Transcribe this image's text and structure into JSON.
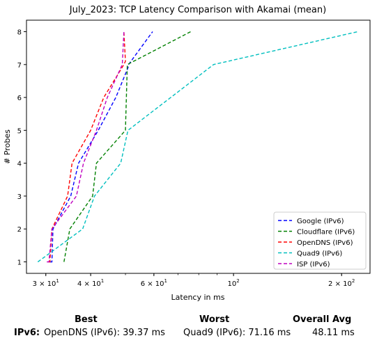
{
  "chart_data": {
    "type": "line",
    "title": "July_2023: TCP Latency Comparison with Akamai (mean)",
    "xlabel": "Latency in ms",
    "ylabel": "# Probes",
    "x_scale": "log",
    "xlim": [
      26.5,
      240
    ],
    "ylim": [
      0.65,
      8.35
    ],
    "x_ticks": [
      {
        "value": 30,
        "base": "3",
        "exp": "1",
        "prefix": "3 × 10"
      },
      {
        "value": 40,
        "base": "4",
        "exp": "1",
        "prefix": "4 × 10"
      },
      {
        "value": 60,
        "base": "6",
        "exp": "1",
        "prefix": "6 × 10"
      },
      {
        "value": 100,
        "base": "",
        "exp": "2",
        "prefix": "10"
      },
      {
        "value": 200,
        "base": "2",
        "exp": "2",
        "prefix": "2 × 10"
      }
    ],
    "y_ticks": [
      1,
      2,
      3,
      4,
      5,
      6,
      7,
      8
    ],
    "legend_position": "bottom-right",
    "series": [
      {
        "name": "Google (IPv6)",
        "color": "#0000ff",
        "x": [
          30.8,
          31.2,
          31.4,
          35.2,
          37.0,
          42.0,
          47.0,
          50.8,
          51.0,
          59.5
        ],
        "y": [
          1,
          1,
          2,
          3,
          4,
          5,
          6,
          6.9,
          7,
          8
        ]
      },
      {
        "name": "Cloudflare (IPv6)",
        "color": "#008000",
        "x": [
          33.7,
          35.0,
          40.5,
          41.5,
          50.0,
          50.6,
          76.0
        ],
        "y": [
          1,
          2,
          3,
          4,
          5,
          7,
          8
        ]
      },
      {
        "name": "OpenDNS (IPv6)",
        "color": "#ff0000",
        "x": [
          30.5,
          30.8,
          31.2,
          34.5,
          35.5,
          40.0,
          43.5,
          49.5,
          50.0,
          49.5
        ],
        "y": [
          1,
          1,
          2,
          3,
          4,
          5,
          6,
          7,
          7.1,
          8
        ]
      },
      {
        "name": "Quad9 (IPv6)",
        "color": "#00bfbf",
        "x": [
          28.5,
          38.0,
          41.0,
          48.5,
          50.8,
          88.0,
          222.0
        ],
        "y": [
          1,
          2,
          3,
          4,
          5,
          7,
          8
        ]
      },
      {
        "name": "ISP (IPv6)",
        "color": "#bf00bf",
        "x": [
          30.2,
          30.6,
          31.2,
          36.5,
          38.2,
          41.5,
          44.5,
          49.0,
          49.5
        ],
        "y": [
          1,
          1,
          2,
          3,
          4,
          5,
          6,
          7,
          8
        ]
      }
    ]
  },
  "summary": {
    "best_header": "Best",
    "worst_header": "Worst",
    "avg_header": "Overall Avg",
    "row_label": "IPv6:",
    "best_value": "OpenDNS (IPv6): 39.37 ms",
    "worst_value": "Quad9 (IPv6): 71.16 ms",
    "avg_value": "48.11 ms"
  }
}
